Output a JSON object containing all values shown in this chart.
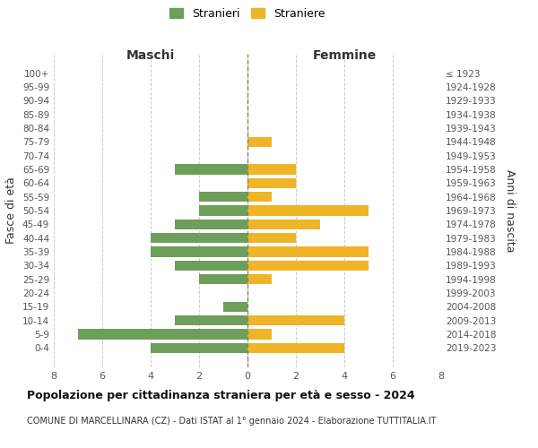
{
  "age_groups": [
    "100+",
    "95-99",
    "90-94",
    "85-89",
    "80-84",
    "75-79",
    "70-74",
    "65-69",
    "60-64",
    "55-59",
    "50-54",
    "45-49",
    "40-44",
    "35-39",
    "30-34",
    "25-29",
    "20-24",
    "15-19",
    "10-14",
    "5-9",
    "0-4"
  ],
  "birth_years": [
    "≤ 1923",
    "1924-1928",
    "1929-1933",
    "1934-1938",
    "1939-1943",
    "1944-1948",
    "1949-1953",
    "1954-1958",
    "1959-1963",
    "1964-1968",
    "1969-1973",
    "1974-1978",
    "1979-1983",
    "1984-1988",
    "1989-1993",
    "1994-1998",
    "1999-2003",
    "2004-2008",
    "2009-2013",
    "2014-2018",
    "2019-2023"
  ],
  "males": [
    0,
    0,
    0,
    0,
    0,
    0,
    0,
    3,
    0,
    2,
    2,
    3,
    4,
    4,
    3,
    2,
    0,
    1,
    3,
    7,
    4
  ],
  "females": [
    0,
    0,
    0,
    0,
    0,
    1,
    0,
    2,
    2,
    1,
    5,
    3,
    2,
    5,
    5,
    1,
    0,
    0,
    4,
    1,
    4
  ],
  "male_color": "#6d9e5a",
  "female_color": "#f0b429",
  "title": "Popolazione per cittadinanza straniera per età e sesso - 2024",
  "subtitle": "COMUNE DI MARCELLINARA (CZ) - Dati ISTAT al 1° gennaio 2024 - Elaborazione TUTTITALIA.IT",
  "legend_male": "Stranieri",
  "legend_female": "Straniere",
  "xlabel_left": "Maschi",
  "xlabel_right": "Femmine",
  "ylabel_left": "Fasce di età",
  "ylabel_right": "Anni di nascita",
  "xlim": 8,
  "background_color": "#ffffff",
  "grid_color": "#cccccc"
}
